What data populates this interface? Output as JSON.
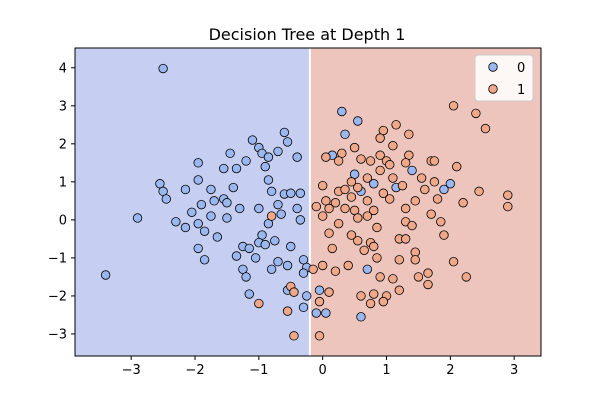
{
  "chart_data": {
    "type": "scatter",
    "title": "Decision Tree at Depth 1",
    "xlabel": "",
    "ylabel": "",
    "xlim": [
      -3.88,
      3.42
    ],
    "ylim": [
      -3.58,
      4.52
    ],
    "xticks": [
      -3,
      -2,
      -1,
      0,
      1,
      2,
      3
    ],
    "yticks": [
      -3,
      -2,
      -1,
      0,
      1,
      2,
      3,
      4
    ],
    "decision_threshold_x": -0.2,
    "regions": [
      {
        "class": "0",
        "color": "#c6cff2",
        "x_range": [
          -3.88,
          -0.2
        ]
      },
      {
        "class": "1",
        "color": "#edc5bd",
        "x_range": [
          -0.2,
          3.42
        ]
      }
    ],
    "legend": {
      "position": "top-right"
    },
    "series": [
      {
        "name": "0",
        "color": "#9bb7f0",
        "points": [
          [
            -2.5,
            3.98
          ],
          [
            -1.1,
            2.1
          ],
          [
            -0.6,
            2.3
          ],
          [
            0.3,
            2.85
          ],
          [
            0.35,
            2.25
          ],
          [
            -1.45,
            1.75
          ],
          [
            -0.7,
            1.8
          ],
          [
            -1.0,
            1.9
          ],
          [
            -0.95,
            1.75
          ],
          [
            -0.55,
            2.05
          ],
          [
            -0.85,
            1.65
          ],
          [
            -0.4,
            1.65
          ],
          [
            -1.2,
            1.55
          ],
          [
            -1.55,
            1.35
          ],
          [
            -1.95,
            1.5
          ],
          [
            -1.35,
            1.35
          ],
          [
            -0.9,
            1.4
          ],
          [
            -2.55,
            0.95
          ],
          [
            -2.5,
            0.75
          ],
          [
            -2.45,
            0.55
          ],
          [
            -2.15,
            0.8
          ],
          [
            -1.95,
            1.05
          ],
          [
            -1.75,
            0.8
          ],
          [
            -1.4,
            0.85
          ],
          [
            -0.85,
            1.05
          ],
          [
            -0.8,
            0.75
          ],
          [
            -0.6,
            0.68
          ],
          [
            -0.5,
            0.7
          ],
          [
            -0.35,
            0.7
          ],
          [
            -1.7,
            0.5
          ],
          [
            -1.55,
            0.55
          ],
          [
            -1.9,
            0.4
          ],
          [
            -1.5,
            0.45
          ],
          [
            -2.05,
            0.2
          ],
          [
            -1.3,
            0.3
          ],
          [
            -1.0,
            0.3
          ],
          [
            -0.7,
            0.4
          ],
          [
            -0.4,
            0.3
          ],
          [
            -2.9,
            0.05
          ],
          [
            -2.3,
            -0.05
          ],
          [
            -1.95,
            -0.1
          ],
          [
            -1.75,
            0.1
          ],
          [
            -1.5,
            0.05
          ],
          [
            -0.85,
            -0.1
          ],
          [
            -0.65,
            0.15
          ],
          [
            -0.35,
            0.0
          ],
          [
            -2.15,
            -0.2
          ],
          [
            -1.85,
            -0.3
          ],
          [
            -1.65,
            -0.45
          ],
          [
            -0.95,
            -0.4
          ],
          [
            -0.75,
            -0.55
          ],
          [
            -1.95,
            -0.75
          ],
          [
            -1.25,
            -0.7
          ],
          [
            -1.15,
            -0.75
          ],
          [
            -1.0,
            -0.6
          ],
          [
            -0.9,
            -0.65
          ],
          [
            -0.5,
            -0.7
          ],
          [
            -1.85,
            -1.05
          ],
          [
            -1.35,
            -0.95
          ],
          [
            -1.05,
            -1.0
          ],
          [
            -0.7,
            -1.1
          ],
          [
            -0.3,
            -1.05
          ],
          [
            -0.25,
            -1.25
          ],
          [
            -1.25,
            -1.3
          ],
          [
            -1.2,
            -1.5
          ],
          [
            -0.8,
            -1.3
          ],
          [
            -0.3,
            -1.4
          ],
          [
            -0.55,
            -1.85
          ],
          [
            -0.25,
            -2.0
          ],
          [
            -1.15,
            -1.95
          ],
          [
            -0.3,
            -2.3
          ],
          [
            -0.1,
            -2.45
          ],
          [
            0.05,
            -2.45
          ],
          [
            -3.4,
            -1.45
          ],
          [
            -0.05,
            -1.85
          ],
          [
            0.15,
            1.7
          ],
          [
            0.55,
            2.6
          ],
          [
            0.5,
            1.2
          ],
          [
            0.8,
            0.95
          ],
          [
            1.15,
            0.85
          ],
          [
            1.4,
            1.3
          ],
          [
            1.9,
            0.8
          ],
          [
            2.0,
            0.95
          ],
          [
            0.6,
            0.75
          ],
          [
            0.7,
            -1.3
          ],
          [
            0.6,
            -2.55
          ],
          [
            -0.55,
            -1.2
          ]
        ]
      },
      {
        "name": "1",
        "color": "#f0a88a",
        "points": [
          [
            2.05,
            3.0
          ],
          [
            2.4,
            2.8
          ],
          [
            2.55,
            2.4
          ],
          [
            1.15,
            2.5
          ],
          [
            0.95,
            2.35
          ],
          [
            1.35,
            2.25
          ],
          [
            0.3,
            1.75
          ],
          [
            0.5,
            1.9
          ],
          [
            0.6,
            1.6
          ],
          [
            0.9,
            1.7
          ],
          [
            1.1,
            1.95
          ],
          [
            1.35,
            1.7
          ],
          [
            0.05,
            1.65
          ],
          [
            0.25,
            1.55
          ],
          [
            0.75,
            1.55
          ],
          [
            1.0,
            1.55
          ],
          [
            1.05,
            1.45
          ],
          [
            1.3,
            1.5
          ],
          [
            1.7,
            1.55
          ],
          [
            1.75,
            1.55
          ],
          [
            2.1,
            1.4
          ],
          [
            0.45,
            1.0
          ],
          [
            0.7,
            1.1
          ],
          [
            0.9,
            1.3
          ],
          [
            1.1,
            1.1
          ],
          [
            1.55,
            1.1
          ],
          [
            1.75,
            1.0
          ],
          [
            0.0,
            0.9
          ],
          [
            0.25,
            0.75
          ],
          [
            0.35,
            0.8
          ],
          [
            0.55,
            0.85
          ],
          [
            0.95,
            0.7
          ],
          [
            1.25,
            0.9
          ],
          [
            1.6,
            0.8
          ],
          [
            2.45,
            0.75
          ],
          [
            2.9,
            0.65
          ],
          [
            0.05,
            0.5
          ],
          [
            0.2,
            0.45
          ],
          [
            0.45,
            0.6
          ],
          [
            0.7,
            0.5
          ],
          [
            1.05,
            0.55
          ],
          [
            1.45,
            0.5
          ],
          [
            1.8,
            0.55
          ],
          [
            2.2,
            0.45
          ],
          [
            2.9,
            0.35
          ],
          [
            -0.1,
            0.35
          ],
          [
            0.1,
            0.3
          ],
          [
            0.35,
            0.3
          ],
          [
            0.5,
            0.25
          ],
          [
            0.8,
            0.25
          ],
          [
            1.3,
            0.3
          ],
          [
            1.7,
            0.15
          ],
          [
            0.0,
            0.1
          ],
          [
            0.55,
            0.05
          ],
          [
            0.7,
            0.1
          ],
          [
            1.3,
            -0.05
          ],
          [
            1.4,
            -0.15
          ],
          [
            1.85,
            -0.05
          ],
          [
            0.25,
            -0.1
          ],
          [
            0.85,
            -0.2
          ],
          [
            0.1,
            -0.35
          ],
          [
            0.45,
            -0.4
          ],
          [
            0.55,
            -0.55
          ],
          [
            0.75,
            -0.6
          ],
          [
            1.2,
            -0.5
          ],
          [
            1.3,
            -0.5
          ],
          [
            1.9,
            -0.4
          ],
          [
            0.15,
            -0.75
          ],
          [
            0.65,
            -0.8
          ],
          [
            0.8,
            -0.7
          ],
          [
            1.45,
            -0.85
          ],
          [
            0.0,
            -1.2
          ],
          [
            0.4,
            -1.2
          ],
          [
            0.85,
            -1.0
          ],
          [
            1.2,
            -1.05
          ],
          [
            1.45,
            -1.05
          ],
          [
            2.05,
            -1.1
          ],
          [
            -0.15,
            -1.3
          ],
          [
            0.2,
            -1.35
          ],
          [
            0.9,
            -1.5
          ],
          [
            1.1,
            -1.55
          ],
          [
            1.5,
            -1.5
          ],
          [
            1.65,
            -1.4
          ],
          [
            2.25,
            -1.5
          ],
          [
            1.65,
            -1.7
          ],
          [
            -0.5,
            -1.75
          ],
          [
            -0.45,
            -1.9
          ],
          [
            0.1,
            -1.9
          ],
          [
            0.6,
            -2.0
          ],
          [
            0.8,
            -1.95
          ],
          [
            1.0,
            -2.0
          ],
          [
            1.2,
            -1.85
          ],
          [
            0.75,
            -2.2
          ],
          [
            0.95,
            -2.15
          ],
          [
            -0.05,
            -2.15
          ],
          [
            -1.0,
            -2.2
          ],
          [
            -0.55,
            -2.4
          ],
          [
            -0.05,
            -3.05
          ],
          [
            -0.45,
            -3.05
          ],
          [
            -0.8,
            0.1
          ],
          [
            0.9,
            2.15
          ]
        ]
      }
    ]
  }
}
